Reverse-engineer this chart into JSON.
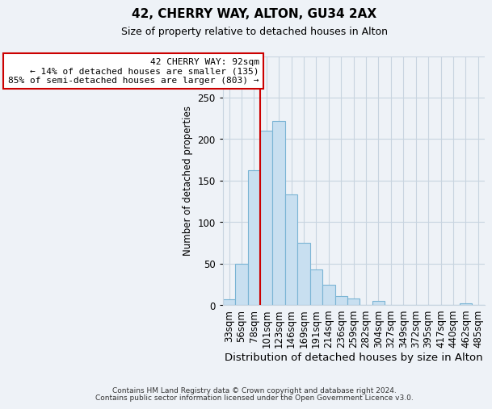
{
  "title": "42, CHERRY WAY, ALTON, GU34 2AX",
  "subtitle": "Size of property relative to detached houses in Alton",
  "xlabel": "Distribution of detached houses by size in Alton",
  "ylabel": "Number of detached properties",
  "categories": [
    "33sqm",
    "56sqm",
    "78sqm",
    "101sqm",
    "123sqm",
    "146sqm",
    "169sqm",
    "191sqm",
    "214sqm",
    "236sqm",
    "259sqm",
    "282sqm",
    "304sqm",
    "327sqm",
    "349sqm",
    "372sqm",
    "395sqm",
    "417sqm",
    "440sqm",
    "462sqm",
    "485sqm"
  ],
  "values": [
    7,
    50,
    163,
    210,
    222,
    133,
    75,
    43,
    25,
    11,
    8,
    0,
    5,
    0,
    0,
    0,
    0,
    0,
    0,
    2,
    0
  ],
  "bar_color": "#c8dff0",
  "bar_edge_color": "#7ab4d4",
  "property_line_label": "42 CHERRY WAY: 92sqm",
  "annotation_line1": "← 14% of detached houses are smaller (135)",
  "annotation_line2": "85% of semi-detached houses are larger (803) →",
  "annotation_box_color": "#ffffff",
  "annotation_box_edge_color": "#cc0000",
  "vline_color": "#cc0000",
  "ylim": [
    0,
    300
  ],
  "yticks": [
    0,
    50,
    100,
    150,
    200,
    250,
    300
  ],
  "footer_line1": "Contains HM Land Registry data © Crown copyright and database right 2024.",
  "footer_line2": "Contains public sector information licensed under the Open Government Licence v3.0.",
  "background_color": "#eef2f7",
  "plot_background_color": "#eef2f7",
  "grid_color": "#c8d4e0",
  "vline_bar_index": 3
}
